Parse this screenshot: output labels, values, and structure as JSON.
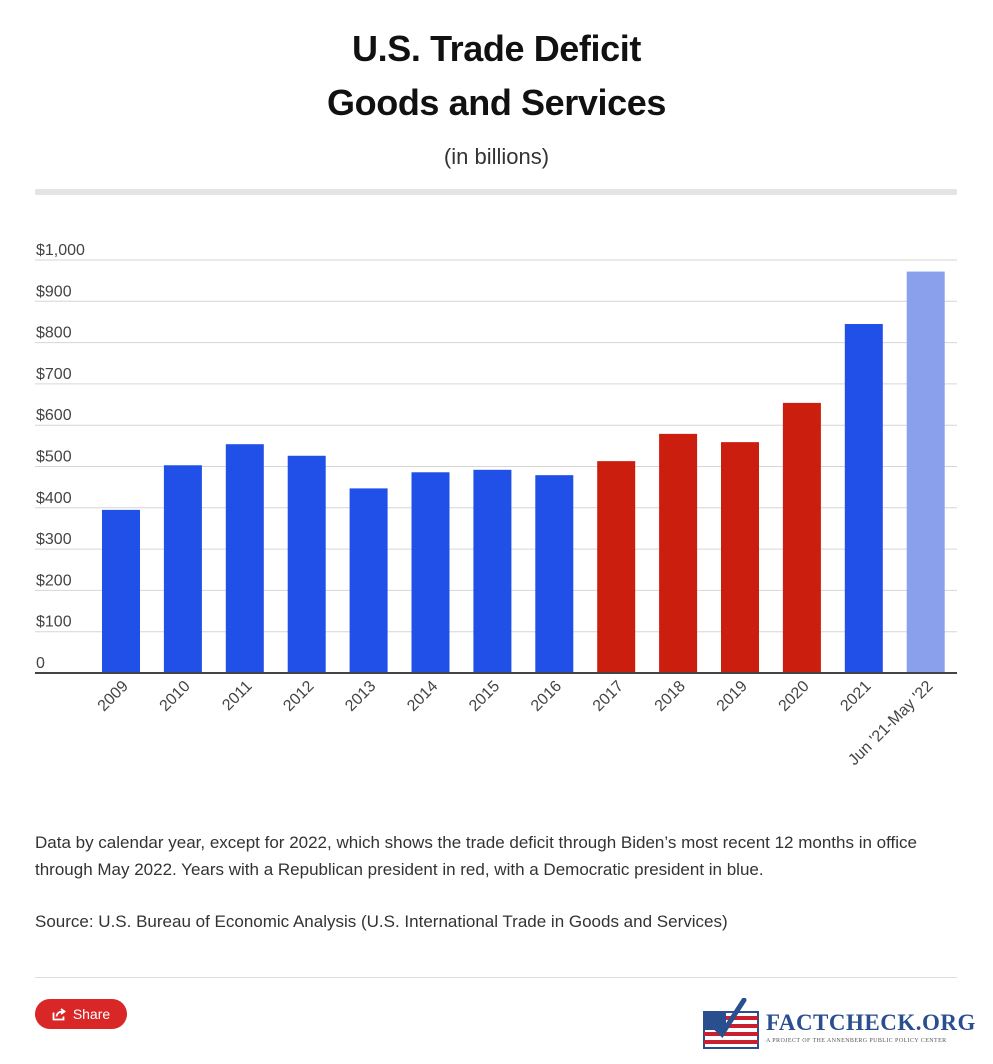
{
  "header": {
    "title_line1": "U.S. Trade Deficit",
    "title_line2": "Goods and Services",
    "subtitle": "(in billions)"
  },
  "chart_data": {
    "type": "bar",
    "title": "U.S. Trade Deficit Goods and Services",
    "subtitle": "(in billions)",
    "xlabel": "",
    "ylabel": "",
    "categories": [
      "2009",
      "2010",
      "2011",
      "2012",
      "2013",
      "2014",
      "2015",
      "2016",
      "2017",
      "2018",
      "2019",
      "2020",
      "2021",
      "Jun '21-May '22"
    ],
    "values": [
      395,
      503,
      554,
      526,
      447,
      486,
      492,
      479,
      513,
      579,
      559,
      654,
      845,
      972
    ],
    "bar_colors": [
      "#2050e8",
      "#2050e8",
      "#2050e8",
      "#2050e8",
      "#2050e8",
      "#2050e8",
      "#2050e8",
      "#2050e8",
      "#cc1e0e",
      "#cc1e0e",
      "#cc1e0e",
      "#cc1e0e",
      "#2050e8",
      "#8aa0ec"
    ],
    "ylim": [
      0,
      1000
    ],
    "y_ticks": [
      0,
      100,
      200,
      300,
      400,
      500,
      600,
      700,
      800,
      900,
      1000
    ],
    "y_tick_labels": [
      "0",
      "$100",
      "$200",
      "$300",
      "$400",
      "$500",
      "$600",
      "$700",
      "$800",
      "$900",
      "$1,000"
    ],
    "grid": true,
    "legend": "none"
  },
  "colors": {
    "democratic": "#2050e8",
    "republican": "#cc1e0e",
    "partial_period": "#8aa0ec",
    "share_button": "#d92626",
    "gridline": "#d6d6d6",
    "axis": "#444444"
  },
  "notes": {
    "caption": "Data by calendar year, except for 2022, which shows the trade deficit through Biden’s most recent 12 months in office through May 2022. Years with a Republican president in red, with a Democratic president in blue.",
    "source": "Source: U.S. Bureau of Economic Analysis (U.S. International Trade in Goods and Services)"
  },
  "footer": {
    "share_label": "Share",
    "share_icon": "share-icon",
    "logo_icon": "factcheck-flag-icon",
    "logo_text": "FACTCHECK.ORG",
    "logo_tagline": "A PROJECT OF THE ANNENBERG PUBLIC POLICY CENTER"
  }
}
